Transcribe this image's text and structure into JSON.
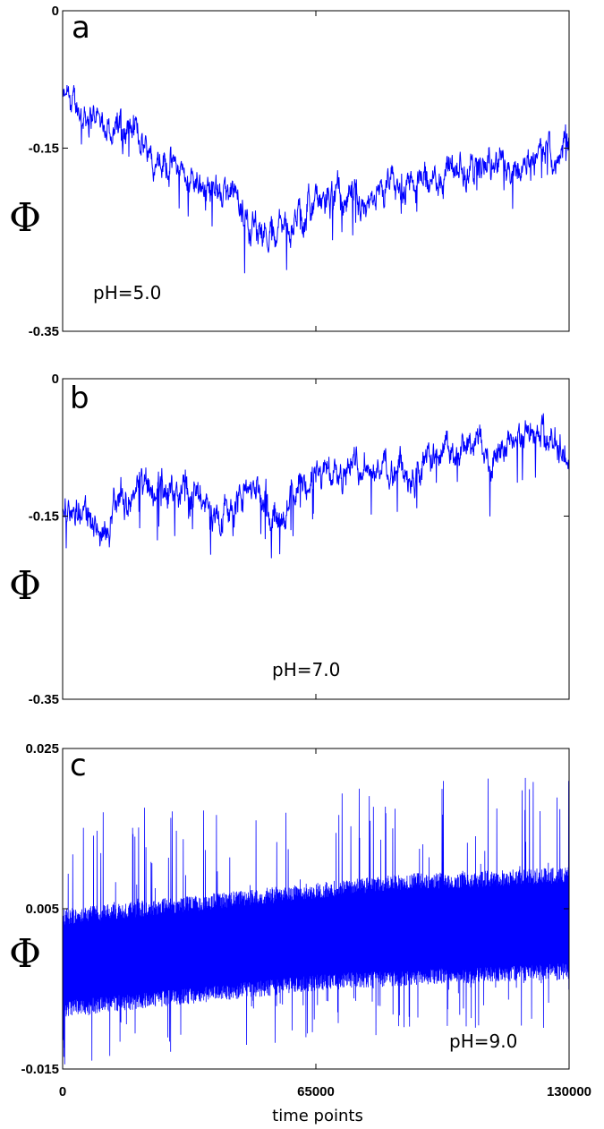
{
  "chart_data": [
    {
      "type": "line",
      "panel_label": "a",
      "annotation": "pH=5.0",
      "ylabel": "Φ",
      "xlim": [
        0,
        130000
      ],
      "ylim": [
        -0.35,
        0
      ],
      "yticks": [
        "0",
        "-0.15",
        "-0.35"
      ],
      "ytick_values": [
        0,
        -0.15,
        -0.35
      ],
      "line_color": "#0000ff",
      "grid": false,
      "series": [
        {
          "x": [
            0,
            5000,
            10000,
            15000,
            20000,
            25000,
            30000,
            35000,
            40000,
            45000,
            50000,
            55000,
            60000,
            65000,
            70000,
            75000,
            80000,
            85000,
            90000,
            95000,
            100000,
            105000,
            110000,
            115000,
            120000,
            125000,
            130000
          ],
          "values": [
            -0.1,
            -0.11,
            -0.12,
            -0.13,
            -0.14,
            -0.155,
            -0.175,
            -0.185,
            -0.2,
            -0.215,
            -0.235,
            -0.24,
            -0.225,
            -0.215,
            -0.205,
            -0.21,
            -0.2,
            -0.2,
            -0.19,
            -0.185,
            -0.175,
            -0.17,
            -0.17,
            -0.165,
            -0.16,
            -0.155,
            -0.15
          ]
        }
      ]
    },
    {
      "type": "line",
      "panel_label": "b",
      "annotation": "pH=7.0",
      "ylabel": "Φ",
      "xlim": [
        0,
        130000
      ],
      "ylim": [
        -0.35,
        0
      ],
      "yticks": [
        "0",
        "-0.15",
        "-0.35"
      ],
      "ytick_values": [
        0,
        -0.15,
        -0.35
      ],
      "line_color": "#0000ff",
      "grid": false,
      "series": [
        {
          "x": [
            0,
            5000,
            10000,
            15000,
            20000,
            25000,
            30000,
            35000,
            40000,
            45000,
            50000,
            55000,
            60000,
            65000,
            70000,
            75000,
            80000,
            85000,
            90000,
            95000,
            100000,
            105000,
            110000,
            115000,
            120000,
            125000,
            130000
          ],
          "values": [
            -0.15,
            -0.14,
            -0.17,
            -0.13,
            -0.115,
            -0.125,
            -0.12,
            -0.13,
            -0.15,
            -0.13,
            -0.12,
            -0.14,
            -0.12,
            -0.115,
            -0.1,
            -0.085,
            -0.09,
            -0.1,
            -0.1,
            -0.095,
            -0.08,
            -0.075,
            -0.08,
            -0.07,
            -0.065,
            -0.06,
            -0.085
          ]
        }
      ]
    },
    {
      "type": "line",
      "panel_label": "c",
      "annotation": "pH=9.0",
      "ylabel": "Φ",
      "xlabel": "time points",
      "xlim": [
        0,
        130000
      ],
      "ylim": [
        -0.015,
        0.025
      ],
      "yticks": [
        "0.025",
        "0.005",
        "-0.015"
      ],
      "ytick_values": [
        0.025,
        0.005,
        -0.015
      ],
      "xticks": [
        "0",
        "65000",
        "130000"
      ],
      "xtick_values": [
        0,
        65000,
        130000
      ],
      "line_color": "#0000ff",
      "grid": false,
      "series": [
        {
          "x": [
            0,
            10000,
            20000,
            30000,
            40000,
            50000,
            60000,
            70000,
            80000,
            90000,
            100000,
            110000,
            120000,
            130000
          ],
          "values": [
            -0.001,
            -0.0005,
            0.0,
            0.0005,
            0.001,
            0.0015,
            0.0018,
            0.002,
            0.0022,
            0.0024,
            0.0026,
            0.0028,
            0.003,
            0.0032
          ],
          "upper_envelope": [
            0.005,
            0.0055,
            0.006,
            0.0065,
            0.007,
            0.0075,
            0.008,
            0.0085,
            0.009,
            0.0095,
            0.0095,
            0.0098,
            0.01,
            0.0102
          ],
          "lower_envelope": [
            -0.0085,
            -0.008,
            -0.0075,
            -0.007,
            -0.0065,
            -0.006,
            -0.0055,
            -0.005,
            -0.0048,
            -0.0046,
            -0.0044,
            -0.0042,
            -0.004,
            -0.0038
          ]
        }
      ]
    }
  ]
}
